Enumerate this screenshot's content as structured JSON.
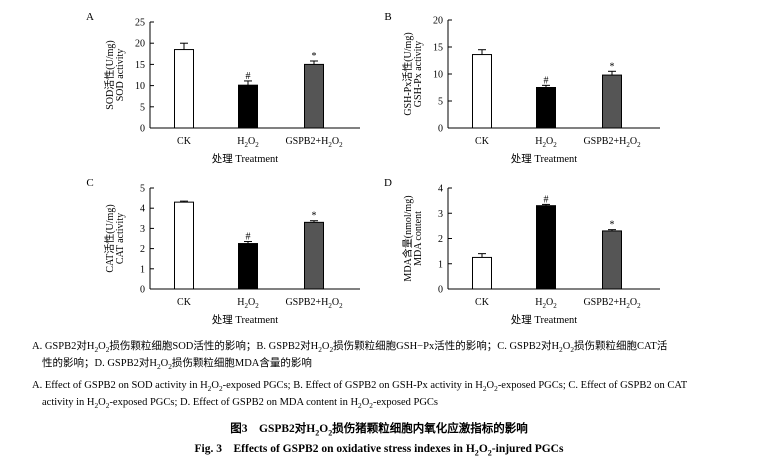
{
  "chart_data": [
    {
      "type": "bar",
      "panel_label": "A",
      "categories": [
        "CK",
        "H2O2",
        "GSPB2+H2O2"
      ],
      "values": [
        18.5,
        10.1,
        15.0
      ],
      "errors": [
        1.5,
        1.0,
        0.8
      ],
      "significance": [
        "",
        "#",
        "*"
      ],
      "ylabel_cn": "SOD活性(U/mg)",
      "ylabel_en": "SOD activity",
      "xlabel": "处理 Treatment",
      "ylim": [
        0,
        25
      ],
      "yticks": [
        0,
        5,
        10,
        15,
        20,
        25
      ],
      "bar_colors": [
        "#ffffff",
        "#000000",
        "#555555"
      ]
    },
    {
      "type": "bar",
      "panel_label": "B",
      "categories": [
        "CK",
        "H2O2",
        "GSPB2+H2O2"
      ],
      "values": [
        13.6,
        7.5,
        9.8
      ],
      "errors": [
        0.9,
        0.4,
        0.7
      ],
      "significance": [
        "",
        "#",
        "*"
      ],
      "ylabel_cn": "GSH-Px活性(U/mg)",
      "ylabel_en": "GSH-Px activity",
      "xlabel": "处理 Treatment",
      "ylim": [
        0,
        20
      ],
      "yticks": [
        0,
        5,
        10,
        15,
        20
      ],
      "bar_colors": [
        "#ffffff",
        "#000000",
        "#555555"
      ]
    },
    {
      "type": "bar",
      "panel_label": "C",
      "categories": [
        "CK",
        "H2O2",
        "GSPB2+H2O2"
      ],
      "values": [
        4.3,
        2.25,
        3.3
      ],
      "errors": [
        0.05,
        0.1,
        0.08
      ],
      "significance": [
        "",
        "#",
        "*"
      ],
      "ylabel_cn": "CAT活性(U/mg)",
      "ylabel_en": "CAT activity",
      "xlabel": "处理 Treatment",
      "ylim": [
        0,
        5
      ],
      "yticks": [
        0,
        1,
        2,
        3,
        4,
        5
      ],
      "bar_colors": [
        "#ffffff",
        "#000000",
        "#555555"
      ]
    },
    {
      "type": "bar",
      "panel_label": "D",
      "categories": [
        "CK",
        "H2O2",
        "GSPB2+H2O2"
      ],
      "values": [
        1.25,
        3.3,
        2.3
      ],
      "errors": [
        0.15,
        0.05,
        0.05
      ],
      "significance": [
        "",
        "#",
        "*"
      ],
      "ylabel_cn": "MDA含量(nmol/mg)",
      "ylabel_en": "MDA content",
      "xlabel": "处理 Treatment",
      "ylim": [
        0,
        4
      ],
      "yticks": [
        0,
        1,
        2,
        3,
        4
      ],
      "bar_colors": [
        "#ffffff",
        "#000000",
        "#555555"
      ]
    }
  ],
  "caption_cn": {
    "a1": "A. GSPB2对H",
    "a2": "O",
    "a3": "损伤颗粒细胞SOD活性的影响；B. GSPB2对H",
    "a4": "O",
    "a5": "损伤颗粒细胞GSH−Px活性的影响；C. GSPB2对H",
    "a6": "O",
    "a7": "损伤颗粒细胞CAT活",
    "b1": "性的影响；D. GSPB2对H",
    "b2": "O",
    "b3": "损伤颗粒细胞MDA含量的影响"
  },
  "caption_en": {
    "a1": "A. Effect of GSPB2 on SOD activity in H",
    "a2": "O",
    "a3": "-exposed PGCs; B. Effect of GSPB2 on GSH-Px activity in H",
    "a4": "O",
    "a5": "-exposed PGCs; C. Effect of GSPB2 on CAT",
    "b1": "activity in H",
    "b2": "O",
    "b3": "-exposed PGCs; D. Effect of GSPB2 on MDA content in H",
    "b4": "O",
    "b5": "-exposed PGCs"
  },
  "figure_title_cn": {
    "p1": "图3　GSPB2对H",
    "p2": "O",
    "p3": "损伤猪颗粒细胞内氧化应激指标的影响"
  },
  "figure_title_en": {
    "p1": "Fig. 3　Effects of GSPB2 on oxidative stress indexes in H",
    "p2": "O",
    "p3": "-injured PGCs"
  },
  "subscript_2": "2"
}
